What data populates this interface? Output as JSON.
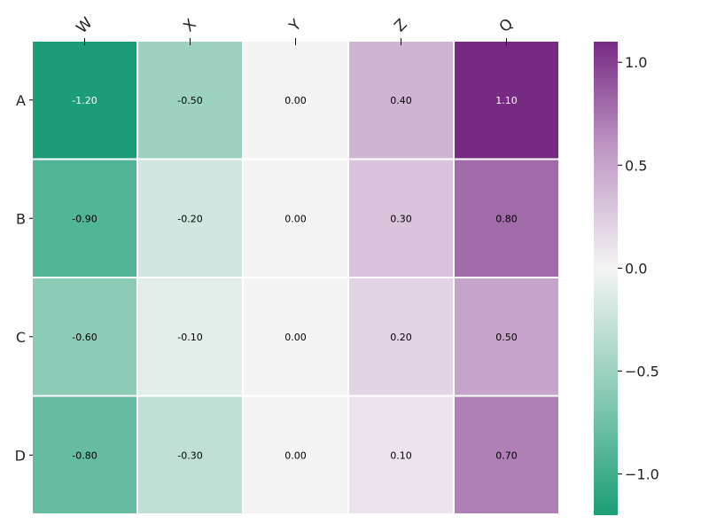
{
  "chart_data": {
    "type": "heatmap",
    "columns": [
      "W",
      "X",
      "Y",
      "Z",
      "Q"
    ],
    "rows": [
      "A",
      "B",
      "C",
      "D"
    ],
    "values": [
      [
        -1.2,
        -0.5,
        0.0,
        0.4,
        1.1
      ],
      [
        -0.9,
        -0.2,
        0.0,
        0.3,
        0.8
      ],
      [
        -0.6,
        -0.1,
        0.0,
        0.2,
        0.5
      ],
      [
        -0.8,
        -0.3,
        0.0,
        0.1,
        0.7
      ]
    ],
    "annotations": [
      [
        "-1.20",
        "-0.50",
        "0.00",
        "0.40",
        "1.10"
      ],
      [
        "-0.90",
        "-0.20",
        "0.00",
        "0.30",
        "0.80"
      ],
      [
        "-0.60",
        "-0.10",
        "0.00",
        "0.20",
        "0.50"
      ],
      [
        "-0.80",
        "-0.30",
        "0.00",
        "0.10",
        "0.70"
      ]
    ],
    "colorscale": {
      "range": [
        -1.2,
        1.1
      ],
      "center": 0.0,
      "stops": [
        {
          "value": -1.2,
          "color": "#1b9e77"
        },
        {
          "value": -0.6,
          "color": "#8ccbb7"
        },
        {
          "value": 0.0,
          "color": "#f4f4f4"
        },
        {
          "value": 0.6,
          "color": "#bd94c3"
        },
        {
          "value": 1.1,
          "color": "#762a83"
        }
      ]
    },
    "colorbar": {
      "ticks": [
        1.0,
        0.5,
        0.0,
        -0.5,
        -1.0
      ],
      "tick_labels": [
        "1.0",
        "0.5",
        "0.0",
        "−0.5",
        "−1.0"
      ]
    },
    "title": "",
    "xlabel": "",
    "ylabel": ""
  }
}
